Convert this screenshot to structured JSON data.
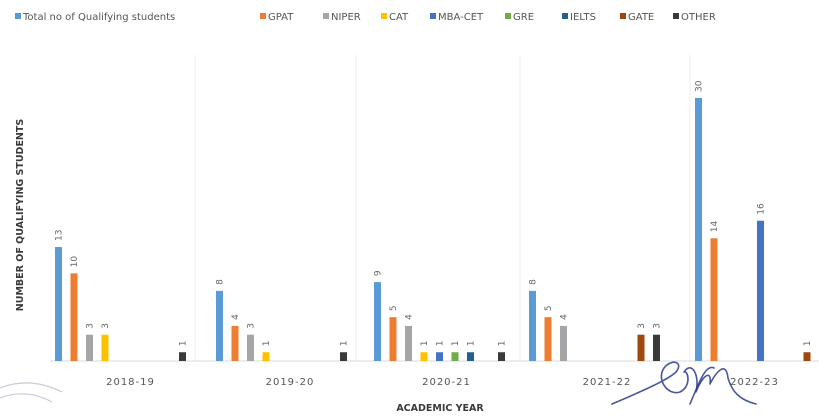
{
  "chart_data": {
    "type": "bar",
    "title": "",
    "xlabel": "ACADEMIC YEAR",
    "ylabel": "NUMBER OF QUALIFYING STUDENTS",
    "categories": [
      "2018-19",
      "2019-20",
      "2020-21",
      "2021-22",
      "2022-23"
    ],
    "ylim": [
      0,
      30
    ],
    "grid": false,
    "legend_position": "top",
    "series": [
      {
        "name": "Total no of Qualifying students",
        "color": "#5b9bd5",
        "values": [
          13,
          8,
          9,
          8,
          30
        ]
      },
      {
        "name": "GPAT",
        "color": "#ed7d31",
        "values": [
          10,
          4,
          5,
          5,
          14
        ]
      },
      {
        "name": "NIPER",
        "color": "#a5a5a5",
        "values": [
          3,
          3,
          4,
          4,
          null
        ]
      },
      {
        "name": "CAT",
        "color": "#ffc000",
        "values": [
          3,
          1,
          1,
          null,
          null
        ]
      },
      {
        "name": "MBA-CET",
        "color": "#4472c4",
        "values": [
          null,
          null,
          1,
          null,
          16
        ]
      },
      {
        "name": "GRE",
        "color": "#70ad47",
        "values": [
          null,
          null,
          1,
          null,
          null
        ]
      },
      {
        "name": "IELTS",
        "color": "#255e91",
        "values": [
          null,
          null,
          1,
          null,
          null
        ]
      },
      {
        "name": "GATE",
        "color": "#9e480e",
        "values": [
          null,
          null,
          null,
          3,
          1
        ]
      },
      {
        "name": "OTHER",
        "color": "#3a3a3a",
        "values": [
          1,
          1,
          1,
          3,
          null
        ]
      }
    ]
  }
}
